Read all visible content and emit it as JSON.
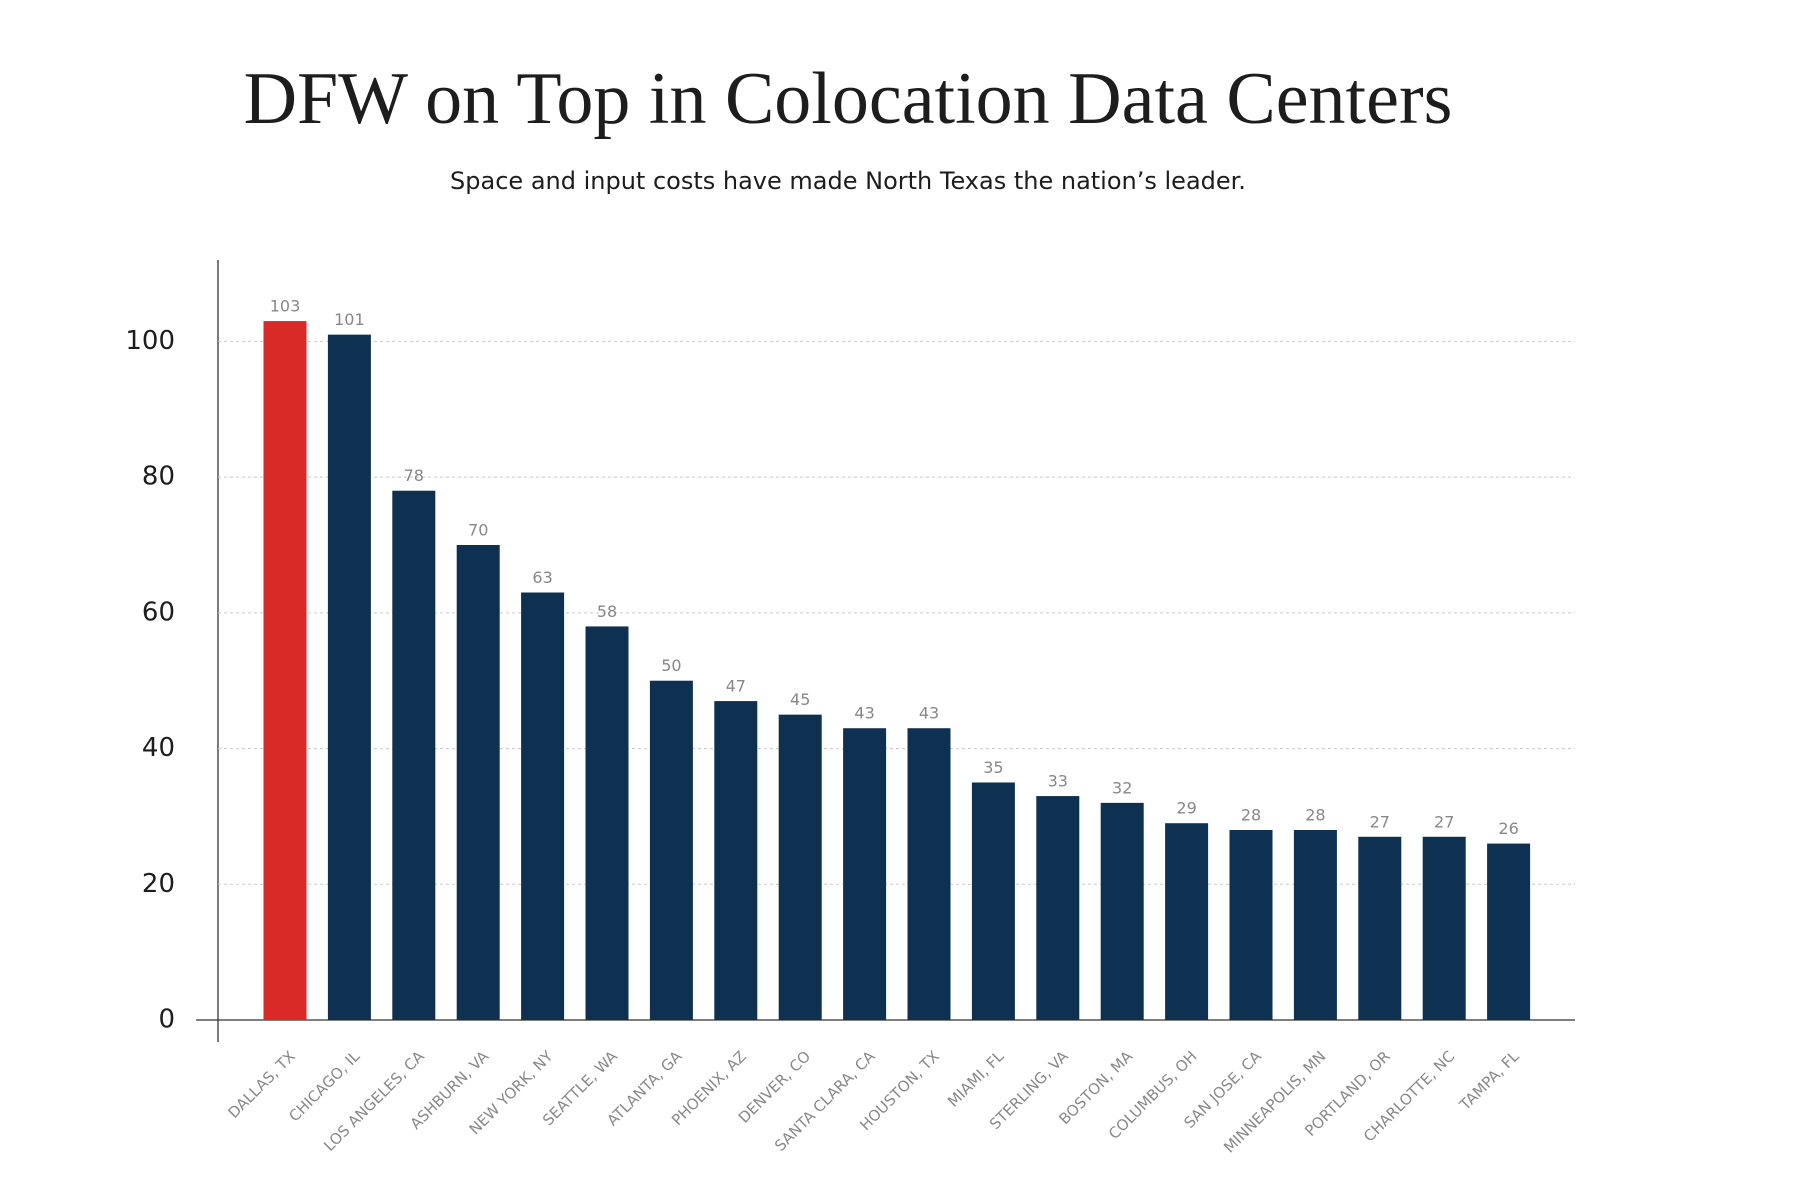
{
  "chart_data": {
    "type": "bar",
    "title": "DFW on Top in Colocation Data Centers",
    "subtitle": "Space and input costs have made North Texas the nation’s leader.",
    "categories": [
      "DALLAS, TX",
      "CHICAGO, IL",
      "LOS ANGELES, CA",
      "ASHBURN, VA",
      "NEW YORK, NY",
      "SEATTLE, WA",
      "ATLANTA, GA",
      "PHOENIX, AZ",
      "DENVER, CO",
      "SANTA CLARA, CA",
      "HOUSTON, TX",
      "MIAMI, FL",
      "STERLING, VA",
      "BOSTON, MA",
      "COLUMBUS, OH",
      "SAN JOSE, CA",
      "MINNEAPOLIS, MN",
      "PORTLAND, OR",
      "CHARLOTTE, NC",
      "TAMPA, FL"
    ],
    "values": [
      103,
      101,
      78,
      70,
      63,
      58,
      50,
      47,
      45,
      43,
      43,
      35,
      33,
      32,
      29,
      28,
      28,
      27,
      27,
      26
    ],
    "colors": [
      "#d92a27",
      "#0e3152",
      "#0e3152",
      "#0e3152",
      "#0e3152",
      "#0e3152",
      "#0e3152",
      "#0e3152",
      "#0e3152",
      "#0e3152",
      "#0e3152",
      "#0e3152",
      "#0e3152",
      "#0e3152",
      "#0e3152",
      "#0e3152",
      "#0e3152",
      "#0e3152",
      "#0e3152",
      "#0e3152"
    ],
    "ylim": [
      0,
      112
    ],
    "yticks": [
      0,
      20,
      40,
      60,
      80,
      100
    ],
    "grid": true
  }
}
